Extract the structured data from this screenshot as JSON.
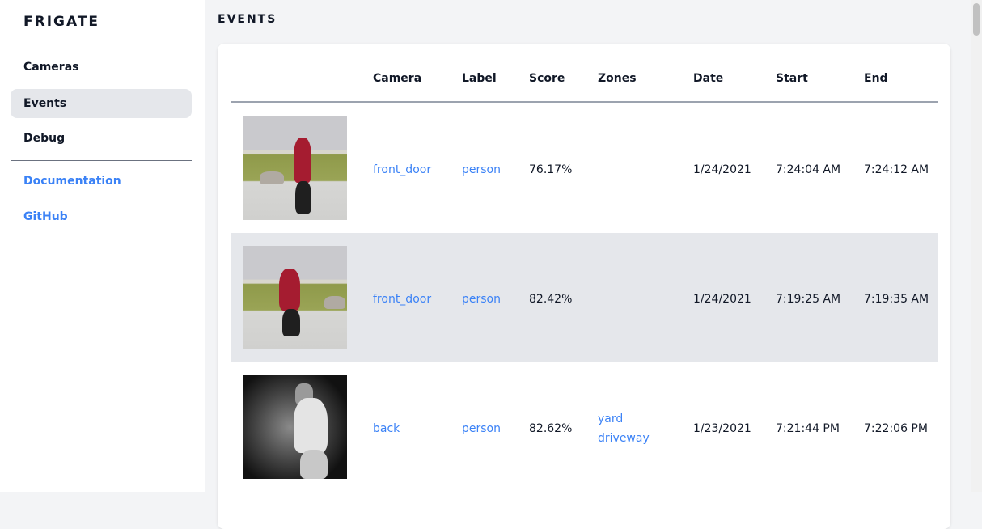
{
  "sidebar": {
    "brand": "FRIGATE",
    "items": [
      {
        "label": "Cameras"
      },
      {
        "label": "Events",
        "active": true
      },
      {
        "label": "Debug"
      }
    ],
    "links": [
      {
        "label": "Documentation"
      },
      {
        "label": "GitHub"
      }
    ]
  },
  "page": {
    "title": "EVENTS"
  },
  "table": {
    "columns": [
      "",
      "Camera",
      "Label",
      "Score",
      "Zones",
      "Date",
      "Start",
      "End"
    ],
    "rows": [
      {
        "camera": "front_door",
        "label": "person",
        "score": "76.17%",
        "zones": [
          "",
          ""
        ],
        "date": "1/24/2021",
        "start": "7:24:04 AM",
        "end": "7:24:12 AM"
      },
      {
        "camera": "front_door",
        "label": "person",
        "score": "82.42%",
        "zones": [
          "",
          ""
        ],
        "date": "1/24/2021",
        "start": "7:19:25 AM",
        "end": "7:19:35 AM"
      },
      {
        "camera": "back",
        "label": "person",
        "score": "82.62%",
        "zones": [
          "yard",
          "driveway"
        ],
        "date": "1/23/2021",
        "start": "7:21:44 PM",
        "end": "7:22:06 PM"
      }
    ]
  },
  "colors": {
    "link": "#3b82f6",
    "active_bg": "#e5e7eb",
    "page_bg": "#f3f4f6"
  }
}
